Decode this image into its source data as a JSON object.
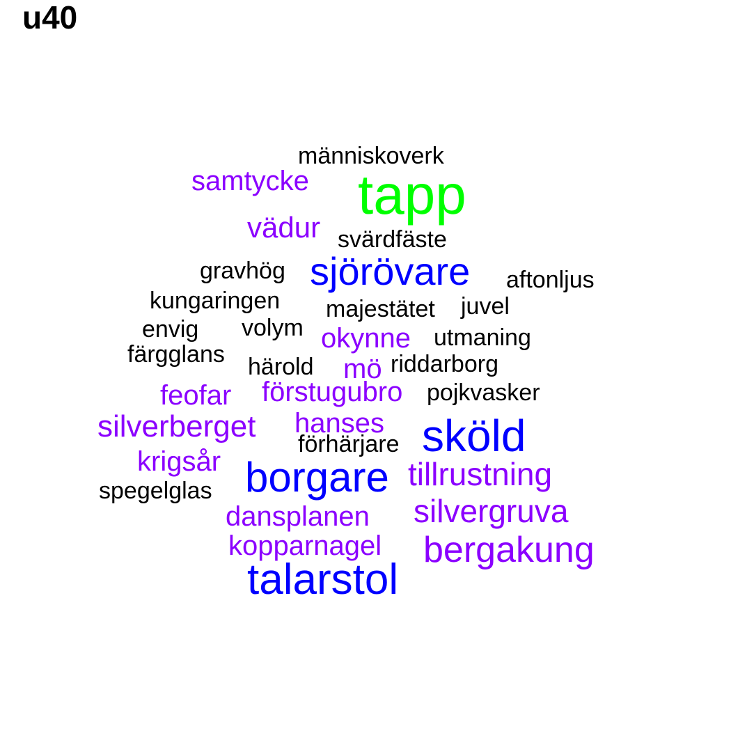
{
  "title": "u40",
  "colors": {
    "top": "#00ff00",
    "high": "#0000ff",
    "medium": "#8b00ff",
    "low": "#000000"
  },
  "words": [
    {
      "text": "tapp",
      "tier": "top"
    },
    {
      "text": "människoverk",
      "tier": "low"
    },
    {
      "text": "samtycke",
      "tier": "medium"
    },
    {
      "text": "vädur",
      "tier": "medium"
    },
    {
      "text": "svärdfäste",
      "tier": "low"
    },
    {
      "text": "gravhög",
      "tier": "low"
    },
    {
      "text": "sjörövare",
      "tier": "high"
    },
    {
      "text": "aftonljus",
      "tier": "low"
    },
    {
      "text": "kungaringen",
      "tier": "low"
    },
    {
      "text": "majestätet",
      "tier": "low"
    },
    {
      "text": "juvel",
      "tier": "low"
    },
    {
      "text": "envig",
      "tier": "low"
    },
    {
      "text": "volym",
      "tier": "low"
    },
    {
      "text": "okynne",
      "tier": "medium"
    },
    {
      "text": "utmaning",
      "tier": "low"
    },
    {
      "text": "färgglans",
      "tier": "low"
    },
    {
      "text": "härold",
      "tier": "low"
    },
    {
      "text": "mö",
      "tier": "medium"
    },
    {
      "text": "riddarborg",
      "tier": "low"
    },
    {
      "text": "feofar",
      "tier": "medium"
    },
    {
      "text": "förstugubro",
      "tier": "medium"
    },
    {
      "text": "pojkvasker",
      "tier": "low"
    },
    {
      "text": "silverberget",
      "tier": "medium"
    },
    {
      "text": "hanses",
      "tier": "medium"
    },
    {
      "text": "förhärjare",
      "tier": "low"
    },
    {
      "text": "sköld",
      "tier": "high"
    },
    {
      "text": "krigsår",
      "tier": "medium"
    },
    {
      "text": "borgare",
      "tier": "high"
    },
    {
      "text": "tillrustning",
      "tier": "medium"
    },
    {
      "text": "spegelglas",
      "tier": "low"
    },
    {
      "text": "dansplanen",
      "tier": "medium"
    },
    {
      "text": "silvergruva",
      "tier": "medium"
    },
    {
      "text": "kopparnagel",
      "tier": "medium"
    },
    {
      "text": "bergakung",
      "tier": "medium"
    },
    {
      "text": "talarstol",
      "tier": "high"
    }
  ]
}
